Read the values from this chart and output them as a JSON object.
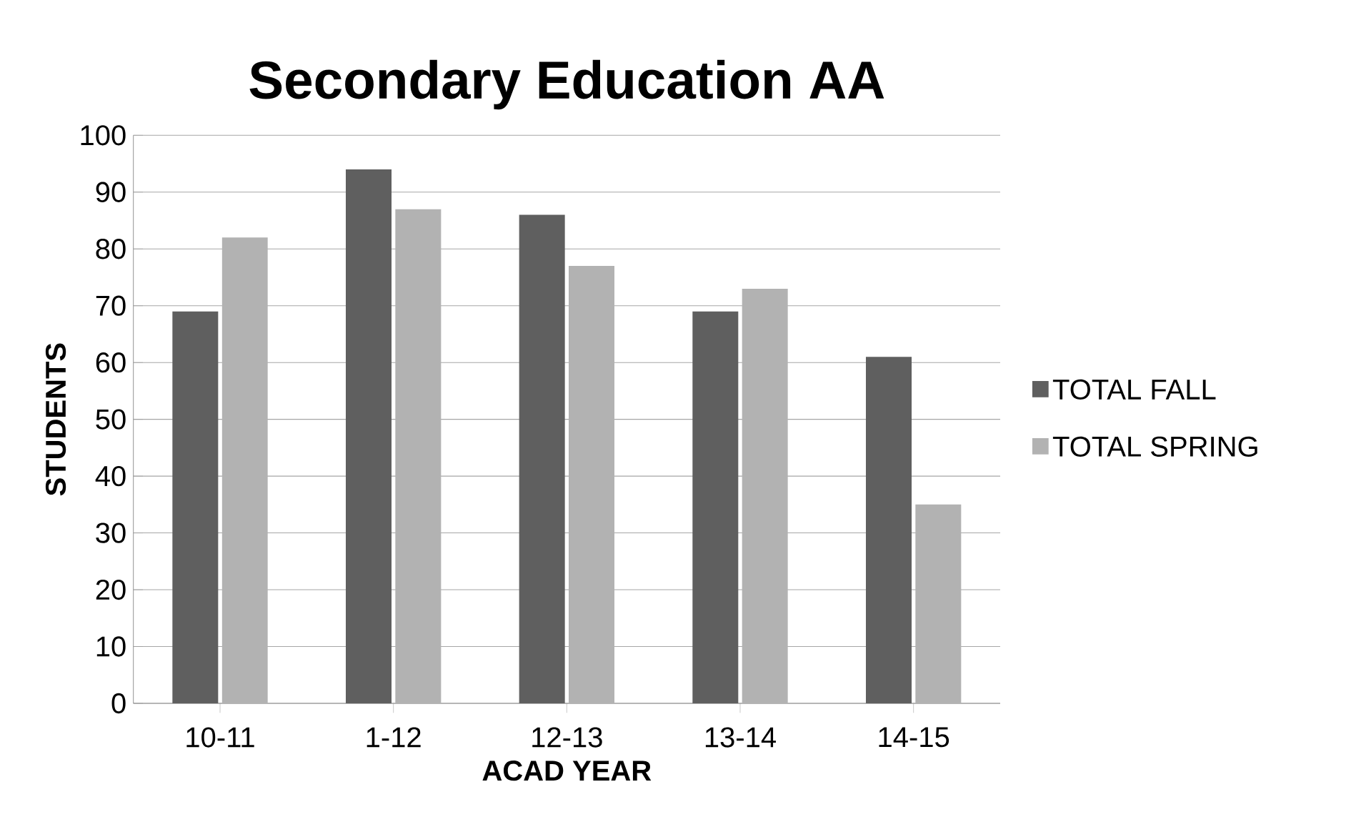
{
  "chart_data": {
    "type": "bar",
    "title": "Secondary Education AA",
    "xlabel": "ACAD YEAR",
    "ylabel": "STUDENTS",
    "categories": [
      "10-11",
      "1-12",
      "12-13",
      "13-14",
      "14-15"
    ],
    "series": [
      {
        "name": "TOTAL FALL",
        "color": "#5f5f5f",
        "values": [
          69,
          94,
          86,
          69,
          61
        ]
      },
      {
        "name": "TOTAL SPRING",
        "color": "#b2b2b2",
        "values": [
          82,
          87,
          77,
          73,
          35
        ]
      }
    ],
    "ylim": [
      0,
      100
    ],
    "yticks": [
      0,
      10,
      20,
      30,
      40,
      50,
      60,
      70,
      80,
      90,
      100
    ],
    "grid": "y",
    "legend": "right"
  }
}
